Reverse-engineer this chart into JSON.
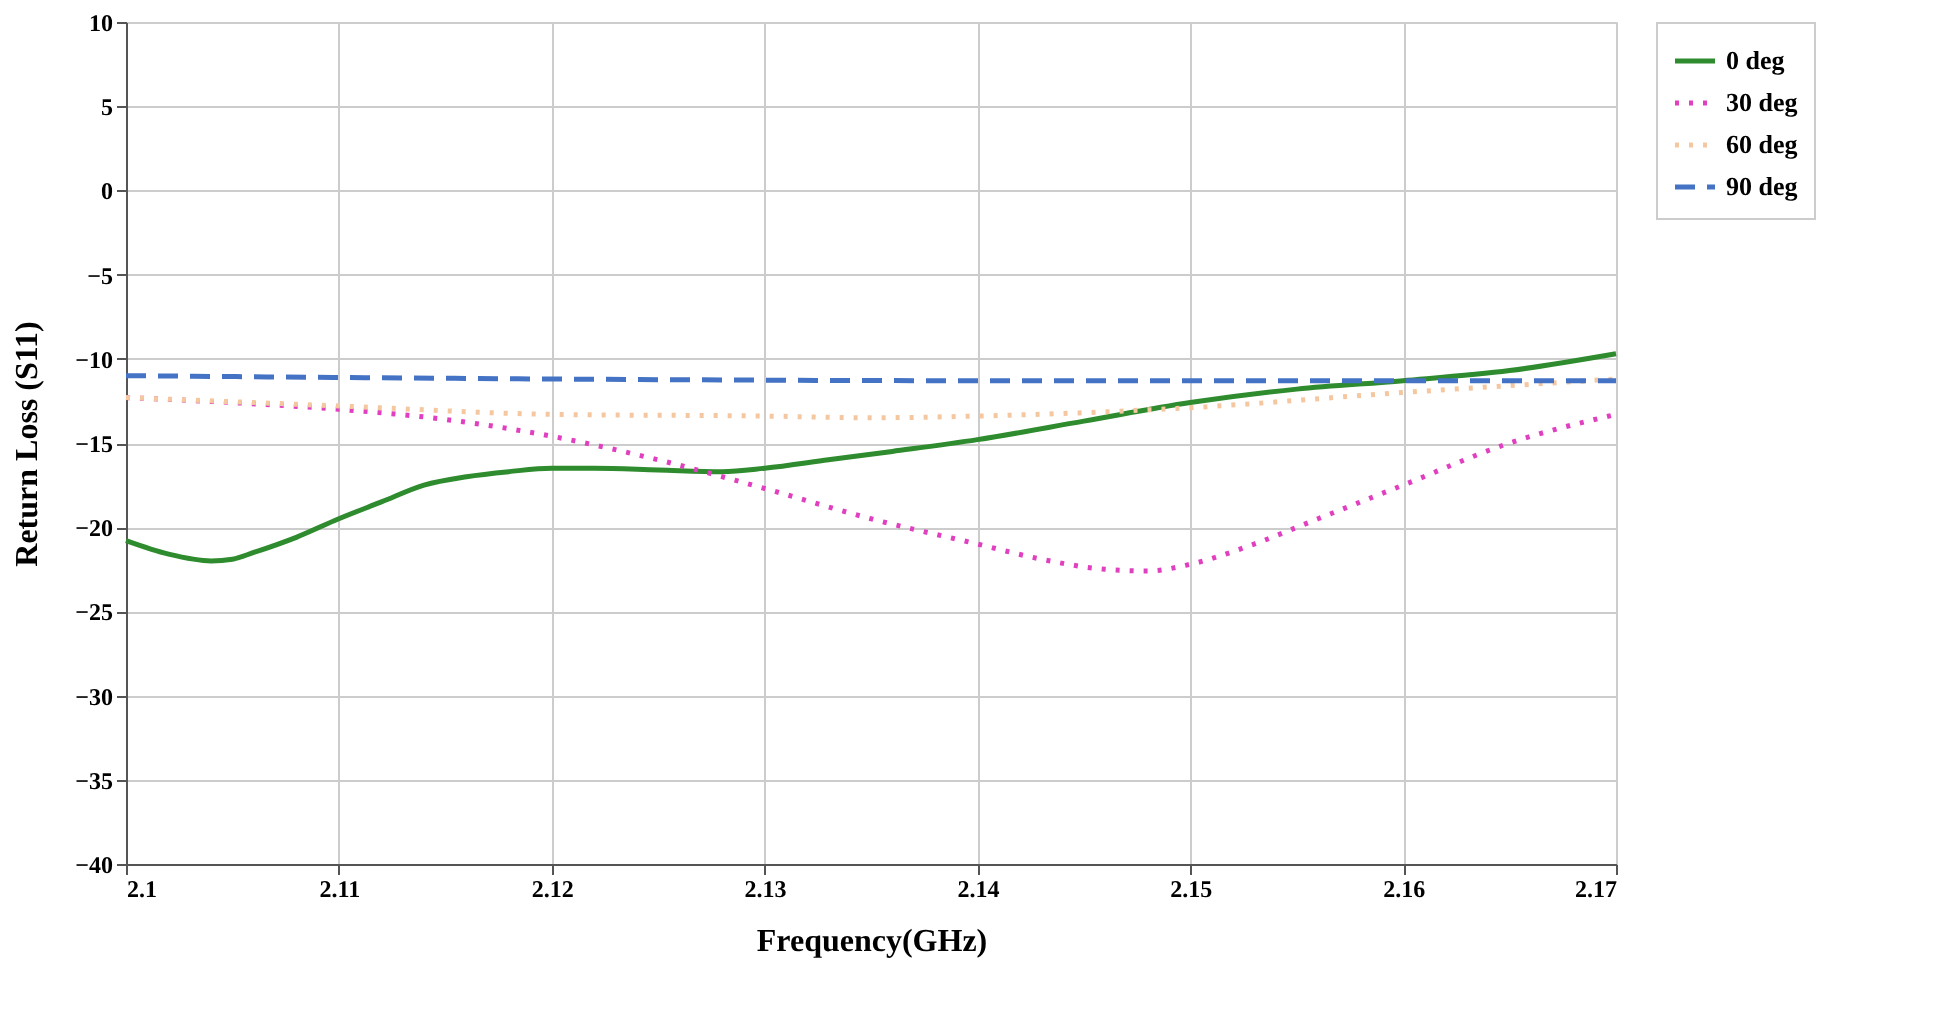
{
  "chart_data": {
    "type": "line",
    "xlabel": "Frequency(GHz)",
    "ylabel": "Return Loss (S11)",
    "xlim": [
      2.1,
      2.17
    ],
    "xticks": [
      2.1,
      2.11,
      2.12,
      2.13,
      2.14,
      2.15,
      2.16,
      2.17
    ],
    "ylim": [
      -40,
      10
    ],
    "yticks": [
      -40,
      -35,
      -30,
      -25,
      -20,
      -15,
      -10,
      -5,
      0,
      5,
      10
    ],
    "grid": true,
    "legend": "right",
    "series": [
      {
        "name": "0 deg",
        "color": "#2e8b2e",
        "line_style": "solid",
        "x": [
          2.1,
          2.102,
          2.104,
          2.105,
          2.106,
          2.108,
          2.11,
          2.112,
          2.114,
          2.116,
          2.118,
          2.12,
          2.122,
          2.125,
          2.128,
          2.13,
          2.133,
          2.136,
          2.14,
          2.145,
          2.15,
          2.155,
          2.16,
          2.165,
          2.17
        ],
        "values": [
          -20.8,
          -21.6,
          -22.0,
          -21.9,
          -21.5,
          -20.6,
          -19.5,
          -18.5,
          -17.5,
          -17.0,
          -16.7,
          -16.5,
          -16.5,
          -16.6,
          -16.7,
          -16.5,
          -16.0,
          -15.5,
          -14.8,
          -13.7,
          -12.6,
          -11.8,
          -11.3,
          -10.7,
          -9.7
        ]
      },
      {
        "name": "30 deg",
        "color": "#e040c0",
        "line_style": "dotted",
        "x": [
          2.1,
          2.105,
          2.11,
          2.115,
          2.12,
          2.125,
          2.13,
          2.135,
          2.14,
          2.143,
          2.146,
          2.148,
          2.15,
          2.153,
          2.156,
          2.16,
          2.165,
          2.17
        ],
        "values": [
          -12.3,
          -12.6,
          -13.0,
          -13.6,
          -14.6,
          -16.0,
          -17.7,
          -19.5,
          -21.0,
          -21.9,
          -22.5,
          -22.6,
          -22.2,
          -21.0,
          -19.5,
          -17.5,
          -15.0,
          -13.3
        ]
      },
      {
        "name": "60 deg",
        "color": "#f5c7a0",
        "line_style": "dotted",
        "x": [
          2.1,
          2.11,
          2.12,
          2.13,
          2.135,
          2.14,
          2.15,
          2.16,
          2.17
        ],
        "values": [
          -12.3,
          -12.8,
          -13.3,
          -13.4,
          -13.5,
          -13.4,
          -12.9,
          -12.0,
          -11.2
        ]
      },
      {
        "name": "90 deg",
        "color": "#4472c4",
        "line_style": "dashed",
        "x": [
          2.1,
          2.12,
          2.14,
          2.16,
          2.17
        ],
        "values": [
          -11.0,
          -11.2,
          -11.3,
          -11.3,
          -11.3
        ]
      }
    ]
  }
}
